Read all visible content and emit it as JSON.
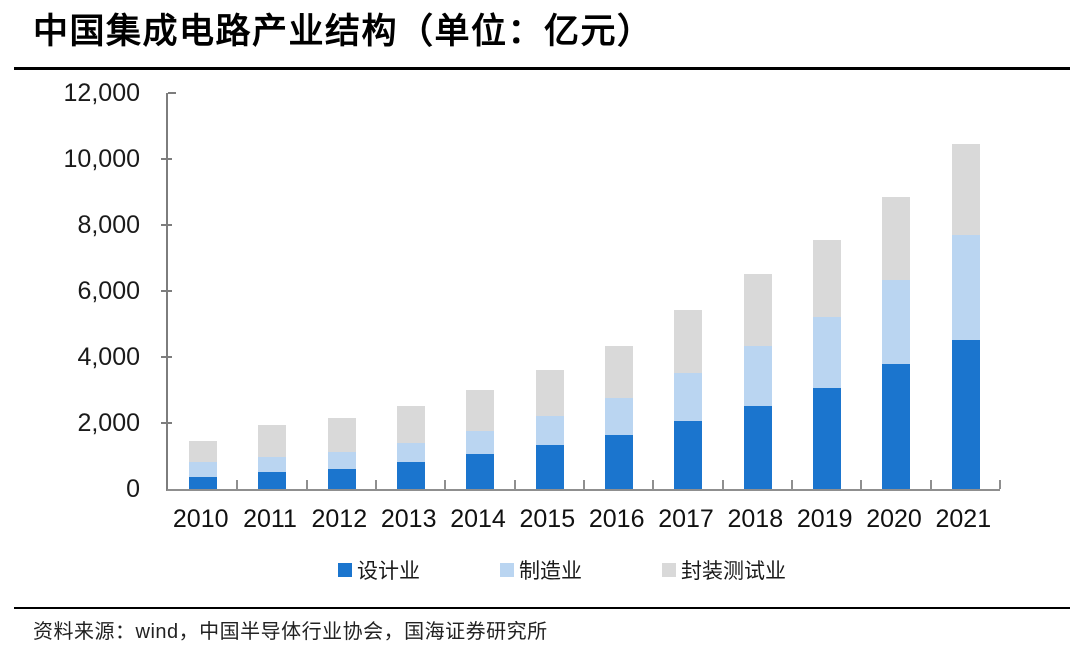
{
  "title": "中国集成电路产业结构（单位：亿元）",
  "source_line": "资料来源：wind，中国半导体行业协会，国海证券研究所",
  "colors": {
    "design": "#1B75CE",
    "manufacturing": "#BAD5F1",
    "packaging": "#D9D9D9",
    "axis": "#7d7d7d",
    "rule": "#000000"
  },
  "chart_data": {
    "type": "bar",
    "stacked": true,
    "title": "中国集成电路产业结构（单位：亿元）",
    "unit": "亿元",
    "grid": false,
    "legend_position": "bottom",
    "ylim": [
      0,
      12000
    ],
    "ytick_step": 2000,
    "ytick_labels": [
      "0",
      "2,000",
      "4,000",
      "6,000",
      "8,000",
      "10,000",
      "12,000"
    ],
    "categories": [
      "2010",
      "2011",
      "2012",
      "2013",
      "2014",
      "2015",
      "2016",
      "2017",
      "2018",
      "2019",
      "2020",
      "2021"
    ],
    "series": [
      {
        "name": "设计业",
        "key": "design",
        "values": [
          363.9,
          526.4,
          621.7,
          808.8,
          1047.4,
          1325.0,
          1644.3,
          2073.5,
          2519.3,
          3063.5,
          3778.4,
          4519.0
        ]
      },
      {
        "name": "制造业",
        "key": "manufacturing",
        "values": [
          447.1,
          438.7,
          501.1,
          600.9,
          712.1,
          900.8,
          1126.9,
          1448.1,
          1818.2,
          2149.1,
          2560.1,
          3176.3
        ]
      },
      {
        "name": "封装测试业",
        "key": "packaging",
        "values": [
          629.2,
          975.6,
          1035.7,
          1098.8,
          1255.9,
          1384.0,
          1564.3,
          1889.7,
          2193.9,
          2349.7,
          2509.5,
          2763.0
        ]
      }
    ]
  }
}
